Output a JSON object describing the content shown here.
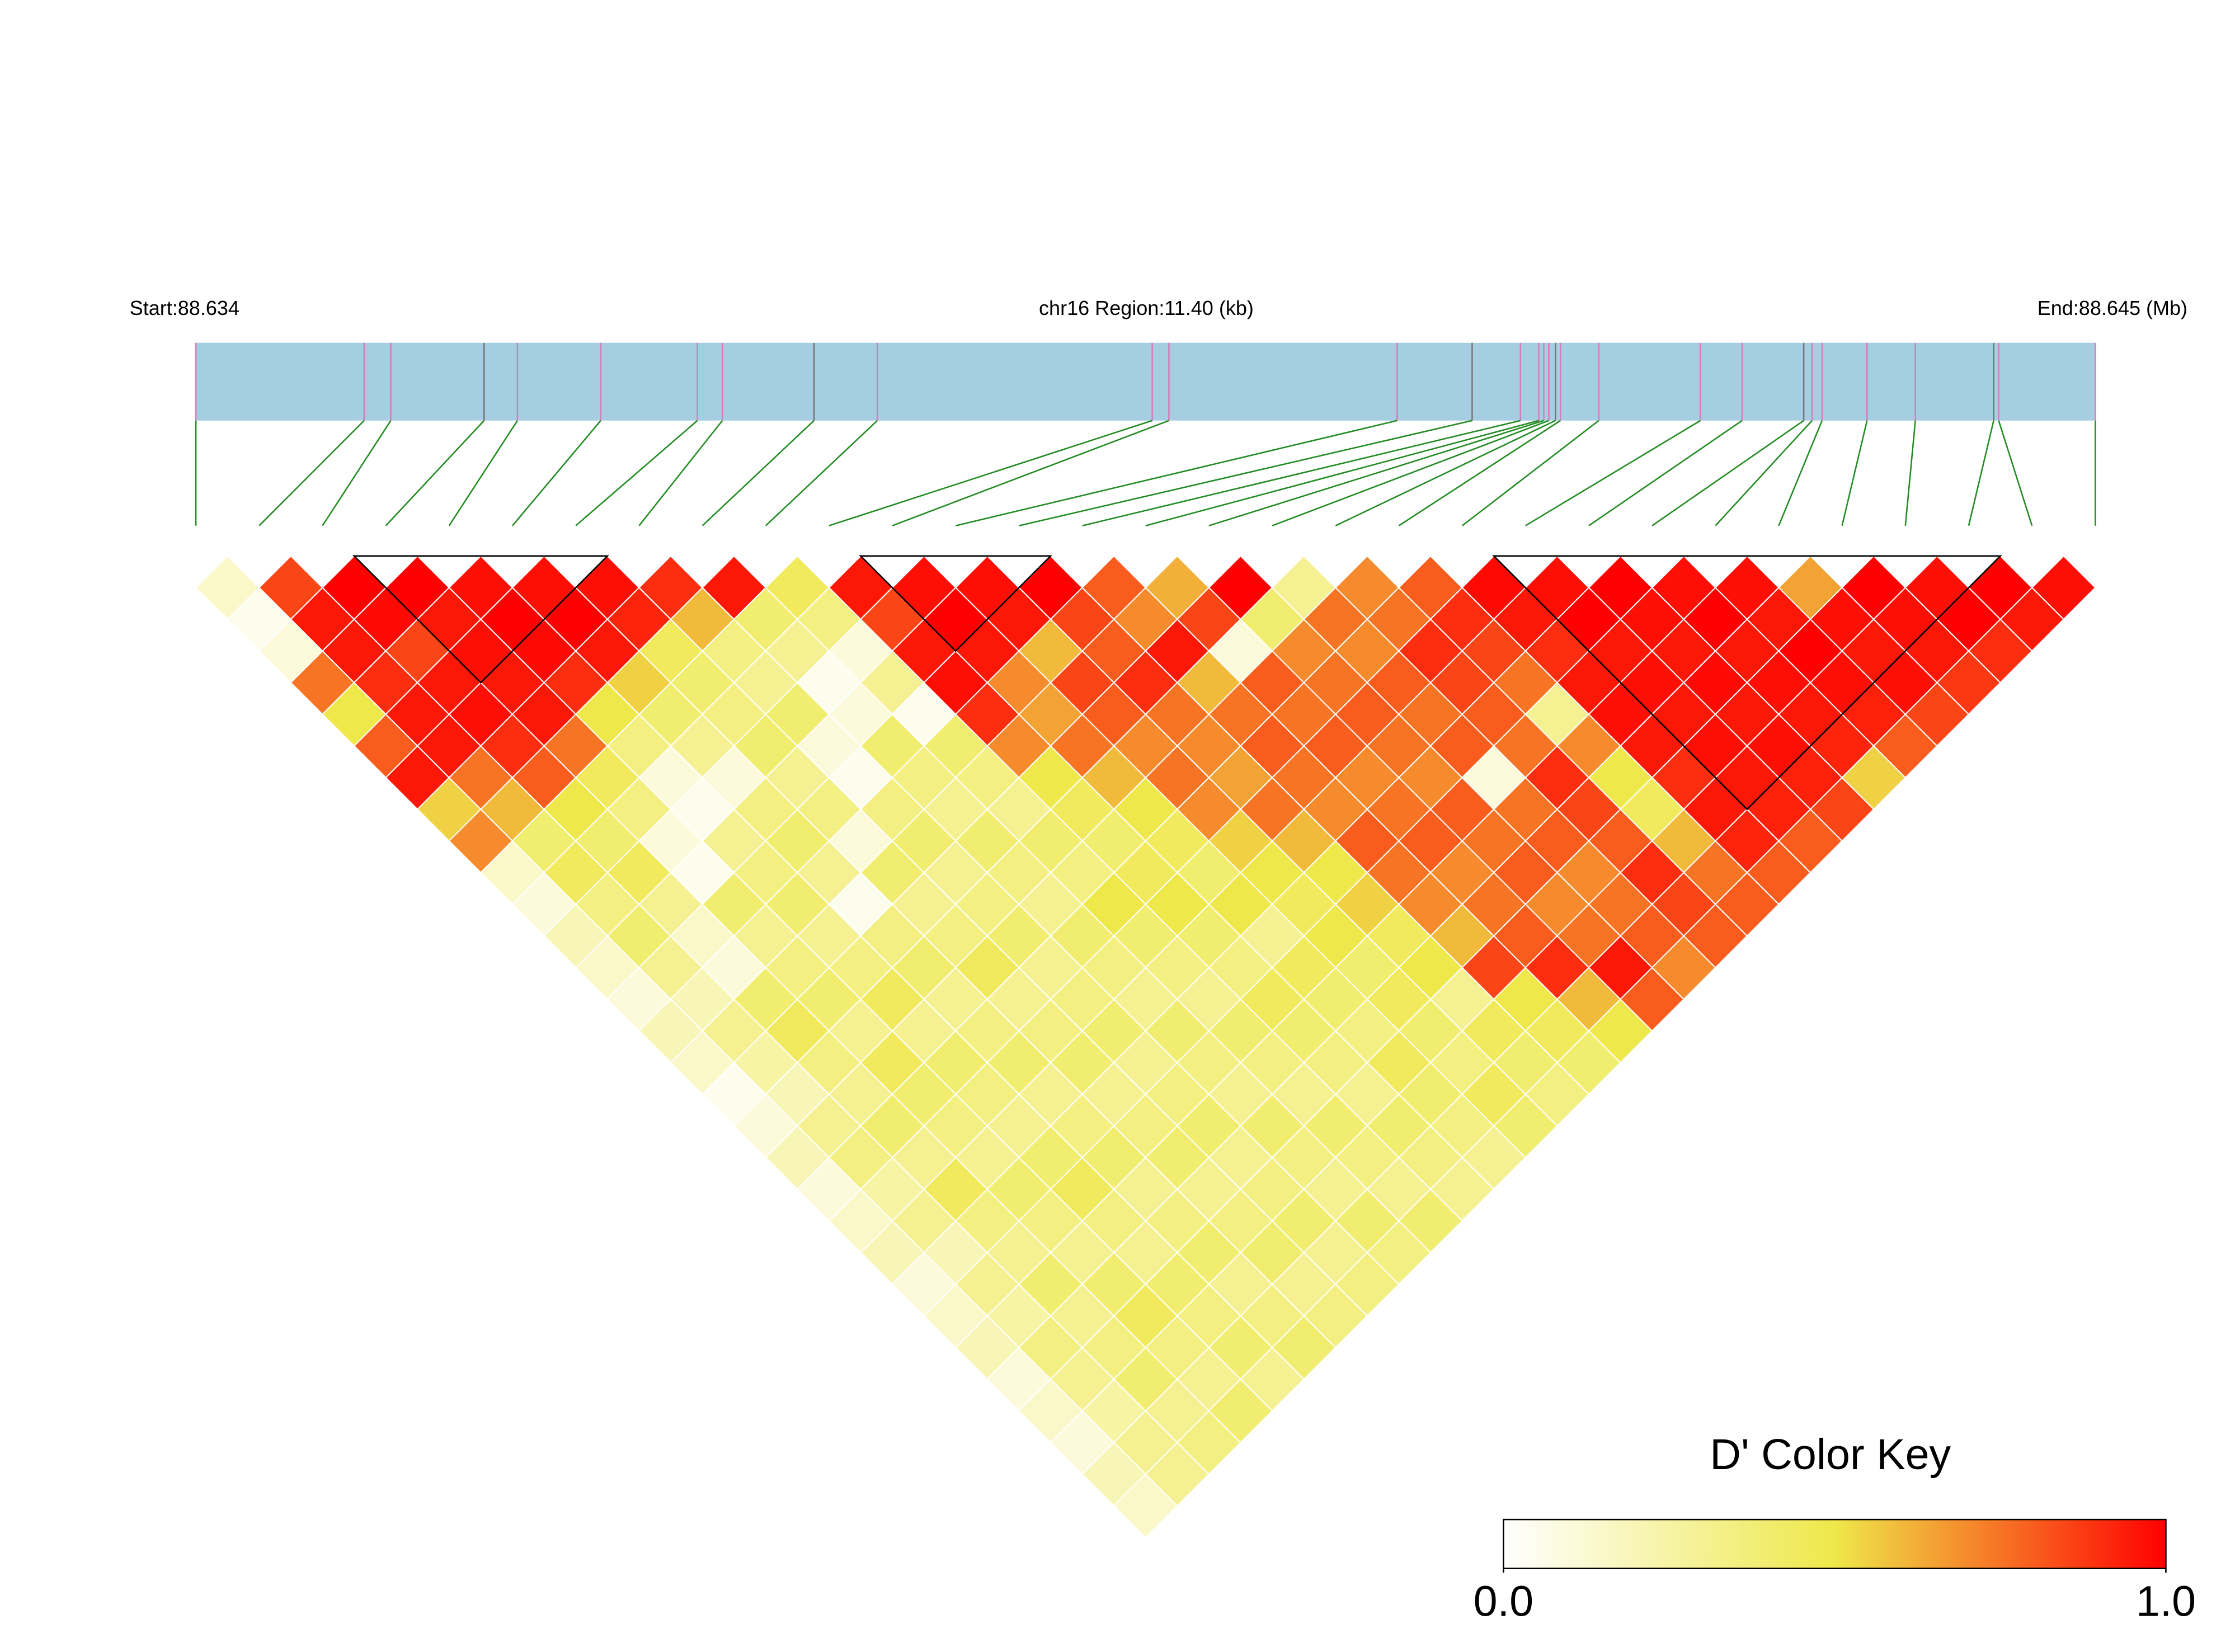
{
  "chart_data": {
    "type": "ld_heatmap",
    "start_label": "Start:88.634",
    "region_label": "chr16 Region:11.40 (kb)",
    "end_label": "End:88.645 (Mb)",
    "xlim": [
      88.634,
      88.6454
    ],
    "snp_positions": [
      88.634,
      88.63501,
      88.63517,
      88.63573,
      88.63593,
      88.63643,
      88.63701,
      88.63716,
      88.63771,
      88.63809,
      88.63974,
      88.63984,
      88.64121,
      88.64166,
      88.64195,
      88.64206,
      88.64209,
      88.64212,
      88.64216,
      88.64219,
      88.64242,
      88.64303,
      88.64328,
      88.64365,
      88.6437,
      88.64376,
      88.64403,
      88.64432,
      88.64479,
      88.64482,
      88.6454
    ],
    "dprime": [
      [
        0.15,
        0.05,
        0.1,
        0.75,
        0.5,
        0.8,
        0.95,
        0.55,
        0.7,
        0.15,
        0.1,
        0.2,
        0.15,
        0.1,
        0.2,
        0.15,
        0.05,
        0.1,
        0.2,
        0.1,
        0.15,
        0.2,
        0.1,
        0.15,
        0.2,
        0.1,
        0.15,
        0.1,
        0.2,
        0.15
      ],
      [
        0.85,
        0.95,
        0.95,
        0.9,
        0.95,
        0.95,
        0.75,
        0.6,
        0.4,
        0.45,
        0.35,
        0.4,
        0.3,
        0.2,
        0.3,
        0.25,
        0.2,
        0.3,
        0.35,
        0.25,
        0.3,
        0.2,
        0.3,
        0.25,
        0.35,
        0.3,
        0.25,
        0.3,
        0.3
      ],
      [
        1,
        0.98,
        0.85,
        0.95,
        0.97,
        0.9,
        0.8,
        0.5,
        0.4,
        0.45,
        0.3,
        0.15,
        0.1,
        0.4,
        0.45,
        0.35,
        0.3,
        0.4,
        0.3,
        0.45,
        0.35,
        0.3,
        0.4,
        0.3,
        0.35,
        0.4,
        0.3,
        0.35
      ],
      [
        1,
        0.95,
        0.97,
        0.95,
        0.95,
        0.75,
        0.45,
        0.35,
        0.1,
        0.05,
        0.4,
        0.3,
        0.35,
        0.4,
        0.3,
        0.45,
        0.4,
        0.35,
        0.3,
        0.4,
        0.35,
        0.3,
        0.4,
        0.45,
        0.35,
        0.3,
        0.4
      ],
      [
        0.97,
        1,
        0.98,
        0.9,
        0.5,
        0.35,
        0.1,
        0.05,
        0.3,
        0.35,
        0.4,
        0.3,
        0.35,
        0.45,
        0.3,
        0.4,
        0.35,
        0.3,
        0.4,
        0.45,
        0.35,
        0.3,
        0.4,
        0.35,
        0.4,
        0.3
      ],
      [
        0.97,
        1,
        0.95,
        0.55,
        0.4,
        0.3,
        0.1,
        0.35,
        0.4,
        0.3,
        0.05,
        0.35,
        0.4,
        0.3,
        0.35,
        0.4,
        0.3,
        0.35,
        0.4,
        0.3,
        0.35,
        0.4,
        0.3,
        0.35,
        0.4
      ],
      [
        0.97,
        0.92,
        0.45,
        0.4,
        0.35,
        0.4,
        0.3,
        0.35,
        0.1,
        0.4,
        0.3,
        0.35,
        0.45,
        0.3,
        0.35,
        0.4,
        0.3,
        0.35,
        0.4,
        0.3,
        0.35,
        0.4,
        0.3,
        0.35
      ],
      [
        0.9,
        0.6,
        0.35,
        0.3,
        0.4,
        0.1,
        0.05,
        0.35,
        0.4,
        0.3,
        0.35,
        0.4,
        0.3,
        0.35,
        0.4,
        0.3,
        0.35,
        0.4,
        0.3,
        0.35,
        0.4,
        0.3,
        0.35
      ],
      [
        0.95,
        0.4,
        0.3,
        0.05,
        0.1,
        0.4,
        0.35,
        0.3,
        0.4,
        0.35,
        0.3,
        0.4,
        0.35,
        0.3,
        0.4,
        0.35,
        0.3,
        0.4,
        0.35,
        0.3,
        0.4,
        0.35
      ],
      [
        0.45,
        0.35,
        0.1,
        0.3,
        0.05,
        0.4,
        0.35,
        0.3,
        0.4,
        0.35,
        0.5,
        0.4,
        0.35,
        0.3,
        0.4,
        0.35,
        0.3,
        0.4,
        0.35,
        0.3,
        0.4
      ],
      [
        0.95,
        0.85,
        0.95,
        0.97,
        0.9,
        0.7,
        0.5,
        0.45,
        0.4,
        0.45,
        0.5,
        0.4,
        0.35,
        0.45,
        0.4,
        0.35,
        0.3,
        0.4,
        0.35,
        0.3
      ],
      [
        0.97,
        1,
        0.95,
        0.7,
        0.65,
        0.75,
        0.6,
        0.5,
        0.45,
        0.4,
        0.5,
        0.3,
        0.45,
        0.4,
        0.35,
        0.45,
        0.4,
        0.35,
        0.3
      ],
      [
        0.97,
        0.95,
        0.6,
        0.85,
        0.8,
        0.7,
        0.75,
        0.7,
        0.55,
        0.5,
        0.45,
        0.5,
        0.4,
        0.45,
        0.4,
        0.35,
        0.45,
        0.4
      ],
      [
        1,
        0.85,
        0.8,
        0.9,
        0.75,
        0.7,
        0.65,
        0.75,
        0.6,
        0.5,
        0.55,
        0.45,
        0.5,
        0.3,
        0.45,
        0.4,
        0.35
      ],
      [
        0.8,
        0.7,
        0.95,
        0.6,
        0.75,
        0.8,
        0.75,
        0.7,
        0.8,
        0.75,
        0.7,
        0.6,
        0.85,
        0.5,
        0.45,
        0.4
      ],
      [
        0.62,
        0.85,
        0.1,
        0.8,
        0.75,
        0.8,
        0.7,
        0.75,
        0.8,
        0.7,
        0.75,
        0.8,
        0.9,
        0.6,
        0.5
      ],
      [
        1,
        0.4,
        0.7,
        0.75,
        0.8,
        0.75,
        0.7,
        0.8,
        0.75,
        0.8,
        0.7,
        0.75,
        0.95,
        0.8
      ],
      [
        0.3,
        0.75,
        0.7,
        0.8,
        0.75,
        0.8,
        0.1,
        0.75,
        0.8,
        0.7,
        0.75,
        0.8,
        0.7
      ],
      [
        0.7,
        0.75,
        0.9,
        0.85,
        0.8,
        0.75,
        0.9,
        0.85,
        0.8,
        0.9,
        0.85,
        0.8
      ],
      [
        0.8,
        0.9,
        0.85,
        0.75,
        0.3,
        0.7,
        0.5,
        0.45,
        0.6,
        0.75,
        0.8
      ],
      [
        0.98,
        0.95,
        0.9,
        0.95,
        0.97,
        0.95,
        0.9,
        0.95,
        0.92,
        0.8
      ],
      [
        0.97,
        1,
        0.95,
        0.97,
        0.95,
        0.97,
        0.95,
        0.93,
        0.8
      ],
      [
        1,
        0.97,
        0.95,
        0.98,
        0.95,
        0.97,
        0.93,
        0.85
      ],
      [
        0.97,
        1,
        0.95,
        0.97,
        0.95,
        0.92,
        0.55
      ],
      [
        0.97,
        0.95,
        1,
        0.97,
        0.93,
        0.8
      ],
      [
        0.65,
        0.97,
        0.95,
        0.97,
        0.85
      ],
      [
        1,
        0.97,
        0.95,
        0.88
      ],
      [
        0.97,
        1,
        0.9
      ],
      [
        1,
        0.95
      ],
      [
        0.97
      ]
    ],
    "blocks": [
      [
        2,
        7
      ],
      [
        10,
        14
      ],
      [
        20,
        29
      ]
    ],
    "key_title": "D' Color Key",
    "key_colors": [
      "#ffffff",
      "#eee84a",
      "#ff0000"
    ],
    "key_ticks": [
      {
        "value": 0,
        "label": "0.0"
      },
      {
        "value": 1,
        "label": "1.0"
      }
    ]
  }
}
